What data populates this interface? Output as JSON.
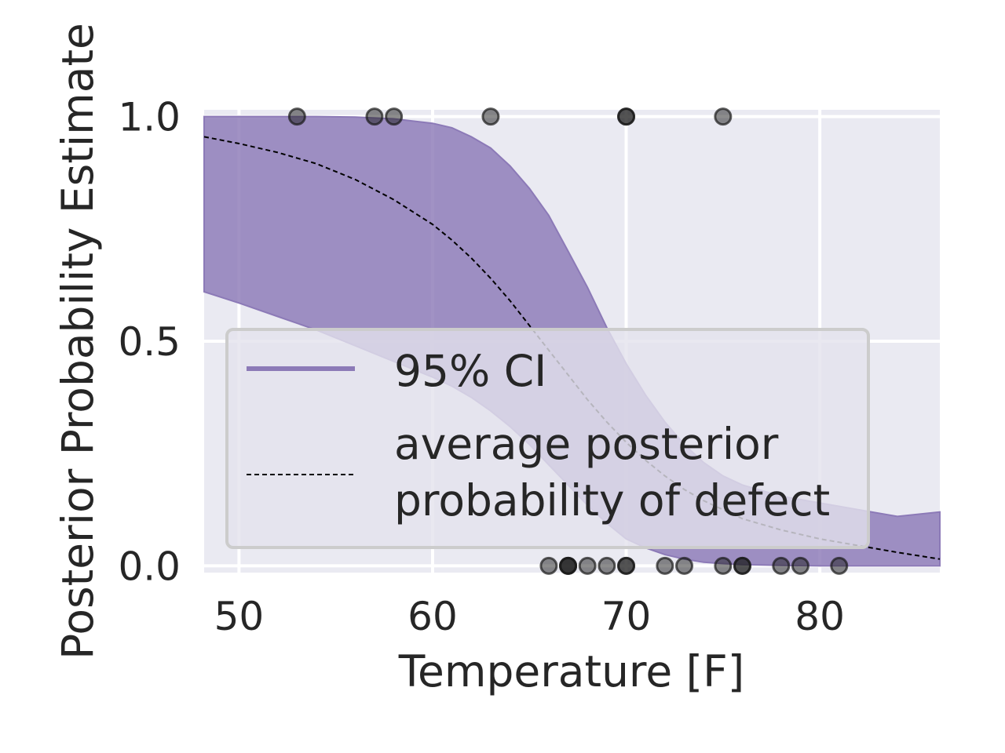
{
  "chart_data": {
    "type": "line",
    "title": "",
    "xlabel": "Temperature [F]",
    "ylabel": "Posterior Probability Estimate",
    "xlim": [
      48.2,
      86.2
    ],
    "ylim": [
      -0.015,
      1.015
    ],
    "xticks": [
      50,
      60,
      70,
      80
    ],
    "xtick_labels": [
      "50",
      "60",
      "70",
      "80"
    ],
    "yticks": [
      0.0,
      0.5,
      1.0
    ],
    "ytick_labels": [
      "0.0",
      "0.5",
      "1.0"
    ],
    "grid": true,
    "legend_position": "center-left",
    "x": [
      48.2,
      50,
      52,
      54,
      56,
      58,
      60,
      61,
      62,
      63,
      64,
      65,
      66,
      67,
      68,
      69,
      70,
      71,
      72,
      73,
      74,
      75,
      76,
      78,
      80,
      82,
      84,
      86.2
    ],
    "ci_upper": [
      1.0,
      1.0,
      1.0,
      1.0,
      0.999,
      0.995,
      0.985,
      0.975,
      0.955,
      0.93,
      0.89,
      0.84,
      0.78,
      0.7,
      0.62,
      0.53,
      0.45,
      0.38,
      0.32,
      0.27,
      0.23,
      0.2,
      0.18,
      0.155,
      0.14,
      0.125,
      0.11,
      0.12
    ],
    "ci_lower": [
      0.61,
      0.585,
      0.555,
      0.525,
      0.49,
      0.455,
      0.42,
      0.4,
      0.375,
      0.345,
      0.31,
      0.27,
      0.225,
      0.18,
      0.135,
      0.095,
      0.06,
      0.04,
      0.025,
      0.015,
      0.008,
      0.005,
      0.003,
      0.001,
      0.0,
      0.0,
      0.0,
      0.0
    ],
    "mean": [
      0.955,
      0.94,
      0.92,
      0.895,
      0.86,
      0.815,
      0.76,
      0.725,
      0.685,
      0.64,
      0.59,
      0.535,
      0.48,
      0.425,
      0.37,
      0.32,
      0.275,
      0.235,
      0.2,
      0.17,
      0.145,
      0.125,
      0.105,
      0.08,
      0.06,
      0.045,
      0.03,
      0.015
    ],
    "observations": [
      {
        "x": 53,
        "y": 1
      },
      {
        "x": 57,
        "y": 1
      },
      {
        "x": 58,
        "y": 1
      },
      {
        "x": 63,
        "y": 1
      },
      {
        "x": 70,
        "y": 1
      },
      {
        "x": 70,
        "y": 1
      },
      {
        "x": 75,
        "y": 1
      },
      {
        "x": 66,
        "y": 0
      },
      {
        "x": 67,
        "y": 0
      },
      {
        "x": 67,
        "y": 0
      },
      {
        "x": 67,
        "y": 0
      },
      {
        "x": 68,
        "y": 0
      },
      {
        "x": 69,
        "y": 0
      },
      {
        "x": 70,
        "y": 0
      },
      {
        "x": 70,
        "y": 0
      },
      {
        "x": 72,
        "y": 0
      },
      {
        "x": 73,
        "y": 0
      },
      {
        "x": 75,
        "y": 0
      },
      {
        "x": 76,
        "y": 0
      },
      {
        "x": 76,
        "y": 0
      },
      {
        "x": 78,
        "y": 0
      },
      {
        "x": 79,
        "y": 0
      },
      {
        "x": 81,
        "y": 0
      }
    ],
    "series": [
      {
        "name": "95% CI",
        "color": "#8c7ab7"
      },
      {
        "name": "average posterior probability of defect",
        "color": "#000000"
      }
    ],
    "colors": {
      "plot_background": "#eaeaf2",
      "grid": "#ffffff",
      "ci_fill": "#8c7ab7",
      "points": "#1a1a1a",
      "legend_background": "#e4e2ec",
      "legend_border": "#cccccc"
    }
  },
  "legend": {
    "items": [
      {
        "label": "95% CI",
        "lines": [
          "95% CI"
        ]
      },
      {
        "label": "average posterior probability of defect",
        "lines": [
          "average posterior",
          "probability of defect"
        ]
      }
    ]
  }
}
